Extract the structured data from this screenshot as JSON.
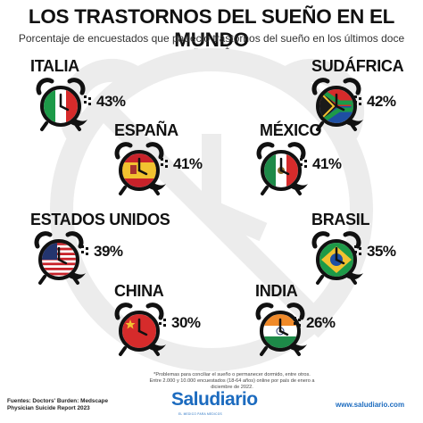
{
  "title": "LOS TRASTORNOS DEL SUEÑO EN EL MUNDO",
  "subtitle": "Porcentaje de encuestados que padeció trastornos del sueño en los últimos doce meses*",
  "footnote": {
    "line1": "*Problemas para conciliar el sueño o permanecer dormido, entre otros.",
    "line2": "Entre 2.000 y 10.000 encuestados (18-64 años) online por país de enero a diciembre de 2022."
  },
  "sources": {
    "line1": "Fuentes: Doctors' Burden: Medscape",
    "line2": "Physician Suicide Report 2023"
  },
  "brand": {
    "name": "Saludiario",
    "tagline": "EL MEDICO PARA MEDICOS"
  },
  "website": "www.saludiario.com",
  "colors": {
    "text": "#111111",
    "brand": "#1c6bbf",
    "background_mark": "#ececec",
    "clock_outline": "#111111"
  },
  "chart_data": {
    "type": "pictograph",
    "title": "LOS TRASTORNOS DEL SUEÑO EN EL MUNDO",
    "subtitle": "Porcentaje de encuestados que padeció trastornos del sueño en los últimos doce meses*",
    "unit": "%",
    "items": [
      {
        "country": "ITALIA",
        "value": 43,
        "label": "43%",
        "icon": "alarm-clock-italy-flag"
      },
      {
        "country": "SUDÁFRICA",
        "value": 42,
        "label": "42%",
        "icon": "alarm-clock-south-africa-flag"
      },
      {
        "country": "ESPAÑA",
        "value": 41,
        "label": "41%",
        "icon": "alarm-clock-spain-flag"
      },
      {
        "country": "MÉXICO",
        "value": 41,
        "label": "41%",
        "icon": "alarm-clock-mexico-flag"
      },
      {
        "country": "ESTADOS UNIDOS",
        "value": 39,
        "label": "39%",
        "icon": "alarm-clock-usa-flag"
      },
      {
        "country": "BRASIL",
        "value": 35,
        "label": "35%",
        "icon": "alarm-clock-brazil-flag"
      },
      {
        "country": "CHINA",
        "value": 30,
        "label": "30%",
        "icon": "alarm-clock-china-flag"
      },
      {
        "country": "INDIA",
        "value": 26,
        "label": "26%",
        "icon": "alarm-clock-india-flag"
      }
    ]
  }
}
